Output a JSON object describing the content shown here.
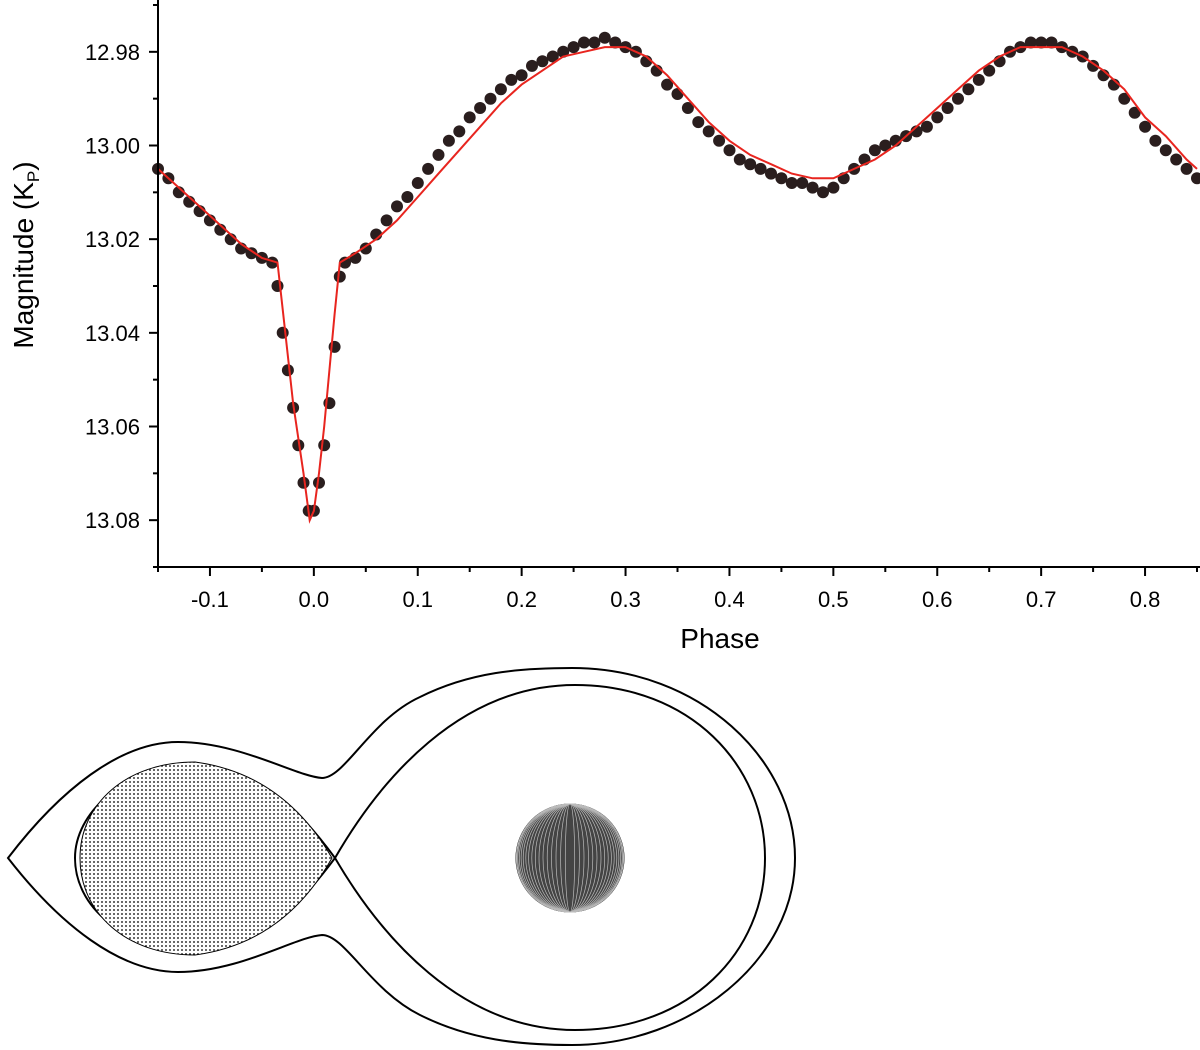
{
  "chart_data": {
    "type": "scatter",
    "xlabel": "Phase",
    "ylabel_main": "Magnitude (K",
    "ylabel_sub": "P",
    "ylabel_close": ")",
    "xlim": [
      -0.15,
      0.85
    ],
    "ylim": [
      12.97,
      13.09
    ],
    "y_inverted": true,
    "grid": false,
    "legend": "none",
    "x_ticks": [
      {
        "value": -0.1,
        "label": "-0.1"
      },
      {
        "value": 0.0,
        "label": "0.0"
      },
      {
        "value": 0.1,
        "label": "0.1"
      },
      {
        "value": 0.2,
        "label": "0.2"
      },
      {
        "value": 0.3,
        "label": "0.3"
      },
      {
        "value": 0.4,
        "label": "0.4"
      },
      {
        "value": 0.5,
        "label": "0.5"
      },
      {
        "value": 0.6,
        "label": "0.6"
      },
      {
        "value": 0.7,
        "label": "0.7"
      },
      {
        "value": 0.8,
        "label": "0.8"
      }
    ],
    "y_ticks": [
      {
        "value": 12.98,
        "label": "12.98"
      },
      {
        "value": 13.0,
        "label": "13.00"
      },
      {
        "value": 13.02,
        "label": "13.02"
      },
      {
        "value": 13.04,
        "label": "13.04"
      },
      {
        "value": 13.06,
        "label": "13.06"
      },
      {
        "value": 13.08,
        "label": "13.08"
      }
    ],
    "series": [
      {
        "kind": "observed",
        "marker_color": "#2a1e1e",
        "points": [
          [
            -0.15,
            13.005
          ],
          [
            -0.14,
            13.007
          ],
          [
            -0.13,
            13.01
          ],
          [
            -0.12,
            13.012
          ],
          [
            -0.11,
            13.014
          ],
          [
            -0.1,
            13.016
          ],
          [
            -0.09,
            13.018
          ],
          [
            -0.08,
            13.02
          ],
          [
            -0.07,
            13.022
          ],
          [
            -0.06,
            13.023
          ],
          [
            -0.05,
            13.024
          ],
          [
            -0.04,
            13.025
          ],
          [
            -0.035,
            13.03
          ],
          [
            -0.03,
            13.04
          ],
          [
            -0.025,
            13.048
          ],
          [
            -0.02,
            13.056
          ],
          [
            -0.015,
            13.064
          ],
          [
            -0.01,
            13.072
          ],
          [
            -0.005,
            13.078
          ],
          [
            0.0,
            13.078
          ],
          [
            0.005,
            13.072
          ],
          [
            0.01,
            13.064
          ],
          [
            0.015,
            13.055
          ],
          [
            0.02,
            13.043
          ],
          [
            0.025,
            13.028
          ],
          [
            0.03,
            13.025
          ],
          [
            0.04,
            13.024
          ],
          [
            0.05,
            13.022
          ],
          [
            0.06,
            13.019
          ],
          [
            0.07,
            13.016
          ],
          [
            0.08,
            13.013
          ],
          [
            0.09,
            13.011
          ],
          [
            0.1,
            13.008
          ],
          [
            0.11,
            13.005
          ],
          [
            0.12,
            13.002
          ],
          [
            0.13,
            12.999
          ],
          [
            0.14,
            12.997
          ],
          [
            0.15,
            12.994
          ],
          [
            0.16,
            12.992
          ],
          [
            0.17,
            12.99
          ],
          [
            0.18,
            12.988
          ],
          [
            0.19,
            12.986
          ],
          [
            0.2,
            12.985
          ],
          [
            0.21,
            12.983
          ],
          [
            0.22,
            12.982
          ],
          [
            0.23,
            12.981
          ],
          [
            0.24,
            12.98
          ],
          [
            0.25,
            12.979
          ],
          [
            0.26,
            12.978
          ],
          [
            0.27,
            12.978
          ],
          [
            0.28,
            12.977
          ],
          [
            0.29,
            12.978
          ],
          [
            0.3,
            12.979
          ],
          [
            0.31,
            12.98
          ],
          [
            0.32,
            12.982
          ],
          [
            0.33,
            12.984
          ],
          [
            0.34,
            12.987
          ],
          [
            0.35,
            12.989
          ],
          [
            0.36,
            12.992
          ],
          [
            0.37,
            12.995
          ],
          [
            0.38,
            12.997
          ],
          [
            0.39,
            12.999
          ],
          [
            0.4,
            13.001
          ],
          [
            0.41,
            13.003
          ],
          [
            0.42,
            13.004
          ],
          [
            0.43,
            13.005
          ],
          [
            0.44,
            13.006
          ],
          [
            0.45,
            13.007
          ],
          [
            0.46,
            13.008
          ],
          [
            0.47,
            13.008
          ],
          [
            0.48,
            13.009
          ],
          [
            0.49,
            13.01
          ],
          [
            0.5,
            13.009
          ],
          [
            0.51,
            13.007
          ],
          [
            0.52,
            13.005
          ],
          [
            0.53,
            13.003
          ],
          [
            0.54,
            13.001
          ],
          [
            0.55,
            13.0
          ],
          [
            0.56,
            12.999
          ],
          [
            0.57,
            12.998
          ],
          [
            0.58,
            12.997
          ],
          [
            0.59,
            12.996
          ],
          [
            0.6,
            12.994
          ],
          [
            0.61,
            12.992
          ],
          [
            0.62,
            12.99
          ],
          [
            0.63,
            12.988
          ],
          [
            0.64,
            12.986
          ],
          [
            0.65,
            12.984
          ],
          [
            0.66,
            12.982
          ],
          [
            0.67,
            12.98
          ],
          [
            0.68,
            12.979
          ],
          [
            0.69,
            12.978
          ],
          [
            0.7,
            12.978
          ],
          [
            0.71,
            12.978
          ],
          [
            0.72,
            12.979
          ],
          [
            0.73,
            12.98
          ],
          [
            0.74,
            12.981
          ],
          [
            0.75,
            12.983
          ],
          [
            0.76,
            12.985
          ],
          [
            0.77,
            12.987
          ],
          [
            0.78,
            12.99
          ],
          [
            0.79,
            12.993
          ],
          [
            0.8,
            12.996
          ],
          [
            0.81,
            12.999
          ],
          [
            0.82,
            13.001
          ],
          [
            0.83,
            13.003
          ],
          [
            0.84,
            13.005
          ],
          [
            0.85,
            13.007
          ]
        ]
      },
      {
        "kind": "model",
        "line_color": "#e8251f",
        "points": [
          [
            -0.15,
            13.005
          ],
          [
            -0.13,
            13.009
          ],
          [
            -0.11,
            13.013
          ],
          [
            -0.09,
            13.017
          ],
          [
            -0.07,
            13.021
          ],
          [
            -0.05,
            13.024
          ],
          [
            -0.035,
            13.025
          ],
          [
            -0.03,
            13.035
          ],
          [
            -0.02,
            13.055
          ],
          [
            -0.01,
            13.07
          ],
          [
            -0.004,
            13.08
          ],
          [
            0.0,
            13.078
          ],
          [
            0.005,
            13.07
          ],
          [
            0.01,
            13.06
          ],
          [
            0.015,
            13.048
          ],
          [
            0.02,
            13.036
          ],
          [
            0.025,
            13.025
          ],
          [
            0.04,
            13.023
          ],
          [
            0.06,
            13.02
          ],
          [
            0.08,
            13.016
          ],
          [
            0.1,
            13.011
          ],
          [
            0.12,
            13.006
          ],
          [
            0.14,
            13.001
          ],
          [
            0.16,
            12.996
          ],
          [
            0.18,
            12.991
          ],
          [
            0.2,
            12.987
          ],
          [
            0.22,
            12.984
          ],
          [
            0.24,
            12.981
          ],
          [
            0.26,
            12.98
          ],
          [
            0.28,
            12.979
          ],
          [
            0.3,
            12.979
          ],
          [
            0.32,
            12.981
          ],
          [
            0.34,
            12.985
          ],
          [
            0.36,
            12.99
          ],
          [
            0.38,
            12.995
          ],
          [
            0.4,
            12.999
          ],
          [
            0.42,
            13.002
          ],
          [
            0.44,
            13.004
          ],
          [
            0.46,
            13.006
          ],
          [
            0.48,
            13.007
          ],
          [
            0.5,
            13.007
          ],
          [
            0.52,
            13.005
          ],
          [
            0.54,
            13.003
          ],
          [
            0.56,
            13.0
          ],
          [
            0.58,
            12.996
          ],
          [
            0.6,
            12.992
          ],
          [
            0.62,
            12.988
          ],
          [
            0.64,
            12.984
          ],
          [
            0.66,
            12.981
          ],
          [
            0.68,
            12.979
          ],
          [
            0.7,
            12.979
          ],
          [
            0.72,
            12.979
          ],
          [
            0.74,
            12.981
          ],
          [
            0.76,
            12.984
          ],
          [
            0.78,
            12.988
          ],
          [
            0.8,
            12.994
          ],
          [
            0.82,
            12.998
          ],
          [
            0.84,
            13.003
          ],
          [
            0.85,
            13.005
          ]
        ]
      }
    ]
  },
  "diagram": {
    "line_color": "#000000"
  }
}
